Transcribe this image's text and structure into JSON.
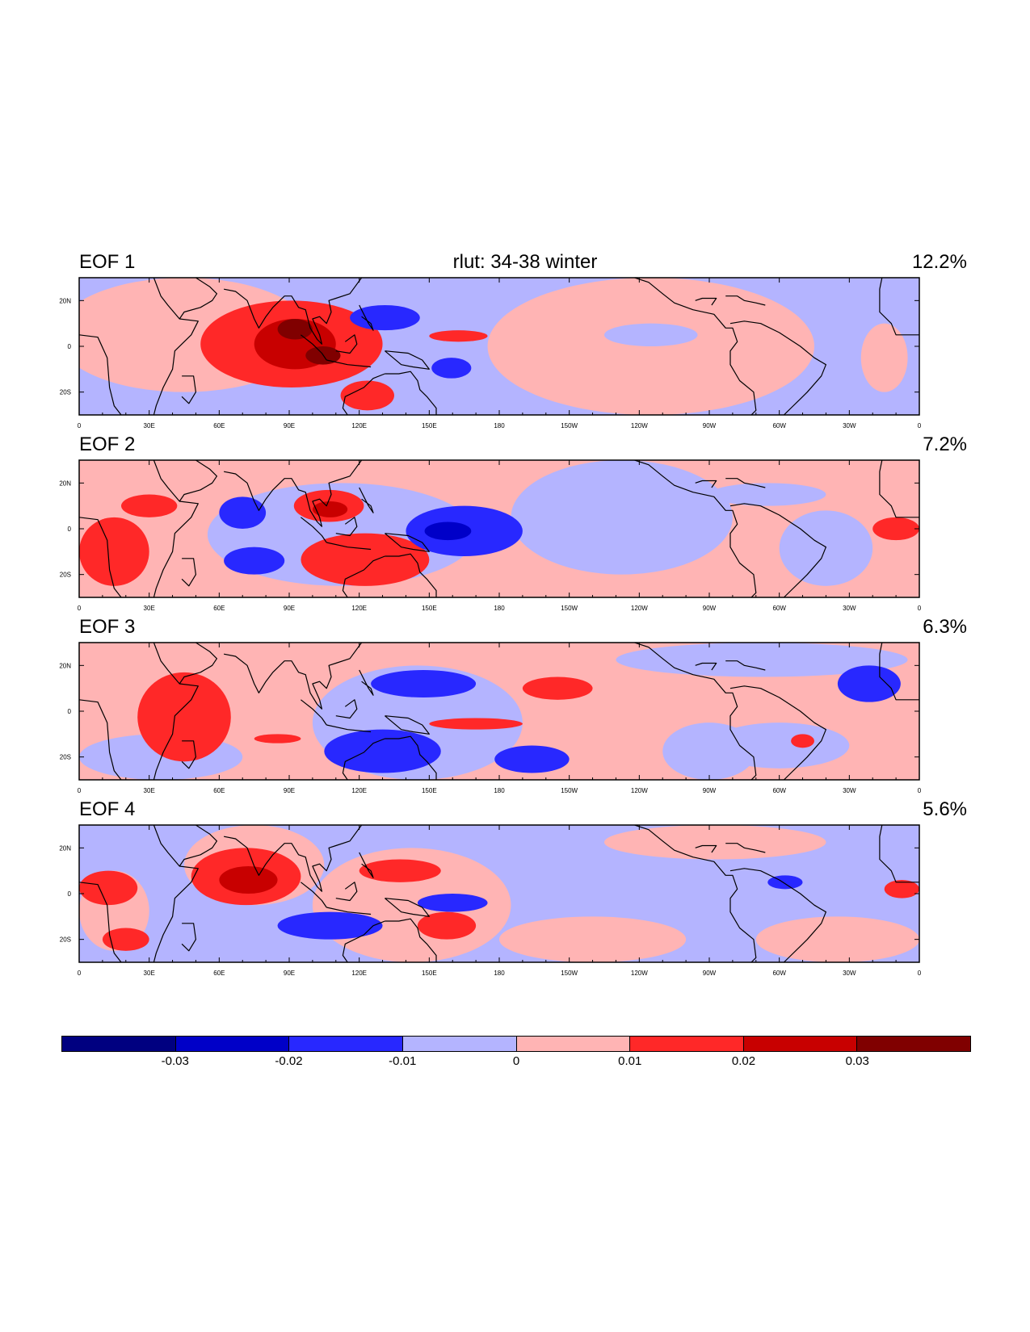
{
  "figure": {
    "main_title": "rlut: 34-38 winter"
  },
  "panels": [
    {
      "title": "EOF 1",
      "variance": "12.2%"
    },
    {
      "title": "EOF 2",
      "variance": "7.2%"
    },
    {
      "title": "EOF 3",
      "variance": "6.3%"
    },
    {
      "title": "EOF 4",
      "variance": "5.6%"
    }
  ],
  "axes": {
    "lat_ticks": [
      "20N",
      "0",
      "20S"
    ],
    "lon_ticks": [
      "0",
      "30E",
      "60E",
      "90E",
      "120E",
      "150E",
      "180",
      "150W",
      "120W",
      "90W",
      "60W",
      "30W",
      "0"
    ]
  },
  "colorbar": {
    "labels": [
      "-0.03",
      "-0.02",
      "-0.01",
      "0",
      "0.01",
      "0.02",
      "0.03"
    ],
    "colors": [
      "#000080",
      "#0000c8",
      "#2828ff",
      "#b4b4ff",
      "#ffb4b4",
      "#ff2828",
      "#c80000",
      "#800000"
    ]
  },
  "chart_data": {
    "type": "heatmap",
    "title": "rlut: 34-38 winter",
    "domain": {
      "lon": [
        0,
        360
      ],
      "lat": [
        -30,
        30
      ]
    },
    "levels": [
      -0.03,
      -0.02,
      -0.01,
      0,
      0.01,
      0.02,
      0.03
    ],
    "panels": [
      {
        "name": "EOF 1",
        "variance_pct": 12.2,
        "background": "neg",
        "features": [
          {
            "lon": [
              -10,
              100
            ],
            "lat": [
              -20,
              30
            ],
            "sign": "pos",
            "level": 1
          },
          {
            "lon": [
              175,
              315
            ],
            "lat": [
              -30,
              30
            ],
            "sign": "pos",
            "level": 1
          },
          {
            "lon": [
              335,
              355
            ],
            "lat": [
              -20,
              10
            ],
            "sign": "pos",
            "level": 1
          },
          {
            "lon": [
              225,
              265
            ],
            "lat": [
              0,
              10
            ],
            "sign": "neg",
            "level": 1
          },
          {
            "lon": [
              52,
              130
            ],
            "lat": [
              -18,
              20
            ],
            "sign": "pos",
            "level": 2
          },
          {
            "lon": [
              75,
              110
            ],
            "lat": [
              -10,
              12
            ],
            "sign": "pos",
            "level": 3
          },
          {
            "lon": [
              85,
              100
            ],
            "lat": [
              3,
              12
            ],
            "sign": "pos",
            "level": 4
          },
          {
            "lon": [
              97,
              112
            ],
            "lat": [
              -8,
              0
            ],
            "sign": "pos",
            "level": 4
          },
          {
            "lon": [
              112,
              135
            ],
            "lat": [
              -28,
              -15
            ],
            "sign": "pos",
            "level": 2
          },
          {
            "lon": [
              150,
              175
            ],
            "lat": [
              2,
              7
            ],
            "sign": "pos",
            "level": 2
          },
          {
            "lon": [
              116,
              146
            ],
            "lat": [
              7,
              18
            ],
            "sign": "neg",
            "level": 2
          },
          {
            "lon": [
              151,
              168
            ],
            "lat": [
              -14,
              -5
            ],
            "sign": "neg",
            "level": 2
          }
        ]
      },
      {
        "name": "EOF 2",
        "variance_pct": 7.2,
        "background": "pos",
        "features": [
          {
            "lon": [
              55,
              170
            ],
            "lat": [
              -25,
              20
            ],
            "sign": "neg",
            "level": 1
          },
          {
            "lon": [
              185,
              280
            ],
            "lat": [
              -20,
              30
            ],
            "sign": "neg",
            "level": 1
          },
          {
            "lon": [
              300,
              340
            ],
            "lat": [
              -25,
              8
            ],
            "sign": "neg",
            "level": 1
          },
          {
            "lon": [
              270,
              320
            ],
            "lat": [
              10,
              20
            ],
            "sign": "neg",
            "level": 1
          },
          {
            "lon": [
              0,
              30
            ],
            "lat": [
              -25,
              5
            ],
            "sign": "pos",
            "level": 2
          },
          {
            "lon": [
              18,
              42
            ],
            "lat": [
              5,
              15
            ],
            "sign": "pos",
            "level": 2
          },
          {
            "lon": [
              92,
              122
            ],
            "lat": [
              3,
              17
            ],
            "sign": "pos",
            "level": 2
          },
          {
            "lon": [
              100,
              115
            ],
            "lat": [
              5,
              12
            ],
            "sign": "pos",
            "level": 3
          },
          {
            "lon": [
              95,
              150
            ],
            "lat": [
              -25,
              -2
            ],
            "sign": "pos",
            "level": 2
          },
          {
            "lon": [
              340,
              360
            ],
            "lat": [
              -5,
              5
            ],
            "sign": "pos",
            "level": 2
          },
          {
            "lon": [
              60,
              80
            ],
            "lat": [
              0,
              14
            ],
            "sign": "neg",
            "level": 2
          },
          {
            "lon": [
              62,
              88
            ],
            "lat": [
              -20,
              -8
            ],
            "sign": "neg",
            "level": 2
          },
          {
            "lon": [
              140,
              190
            ],
            "lat": [
              -12,
              10
            ],
            "sign": "neg",
            "level": 2
          },
          {
            "lon": [
              148,
              168
            ],
            "lat": [
              -5,
              3
            ],
            "sign": "neg",
            "level": 3
          }
        ]
      },
      {
        "name": "EOF 3",
        "variance_pct": 6.3,
        "background": "pos",
        "features": [
          {
            "lon": [
              0,
              70
            ],
            "lat": [
              -30,
              -10
            ],
            "sign": "neg",
            "level": 1
          },
          {
            "lon": [
              100,
              190
            ],
            "lat": [
              -30,
              20
            ],
            "sign": "neg",
            "level": 1
          },
          {
            "lon": [
              230,
              355
            ],
            "lat": [
              15,
              30
            ],
            "sign": "neg",
            "level": 1
          },
          {
            "lon": [
              250,
              290
            ],
            "lat": [
              -30,
              -5
            ],
            "sign": "neg",
            "level": 1
          },
          {
            "lon": [
              270,
              330
            ],
            "lat": [
              -25,
              -5
            ],
            "sign": "neg",
            "level": 1
          },
          {
            "lon": [
              25,
              65
            ],
            "lat": [
              -22,
              17
            ],
            "sign": "pos",
            "level": 2
          },
          {
            "lon": [
              150,
              190
            ],
            "lat": [
              -8,
              -3
            ],
            "sign": "pos",
            "level": 2
          },
          {
            "lon": [
              190,
              220
            ],
            "lat": [
              5,
              15
            ],
            "sign": "pos",
            "level": 2
          },
          {
            "lon": [
              305,
              315
            ],
            "lat": [
              -16,
              -10
            ],
            "sign": "pos",
            "level": 2
          },
          {
            "lon": [
              75,
              95
            ],
            "lat": [
              -14,
              -10
            ],
            "sign": "pos",
            "level": 2
          },
          {
            "lon": [
              125,
              170
            ],
            "lat": [
              6,
              18
            ],
            "sign": "neg",
            "level": 2
          },
          {
            "lon": [
              105,
              155
            ],
            "lat": [
              -27,
              -8
            ],
            "sign": "neg",
            "level": 2
          },
          {
            "lon": [
              178,
              210
            ],
            "lat": [
              -27,
              -15
            ],
            "sign": "neg",
            "level": 2
          },
          {
            "lon": [
              325,
              352
            ],
            "lat": [
              4,
              20
            ],
            "sign": "neg",
            "level": 2
          }
        ]
      },
      {
        "name": "EOF 4",
        "variance_pct": 5.6,
        "background": "neg",
        "features": [
          {
            "lon": [
              0,
              30
            ],
            "lat": [
              -25,
              10
            ],
            "sign": "pos",
            "level": 1
          },
          {
            "lon": [
              45,
              105
            ],
            "lat": [
              -5,
              30
            ],
            "sign": "pos",
            "level": 1
          },
          {
            "lon": [
              100,
              185
            ],
            "lat": [
              -30,
              20
            ],
            "sign": "pos",
            "level": 1
          },
          {
            "lon": [
              225,
              320
            ],
            "lat": [
              15,
              30
            ],
            "sign": "pos",
            "level": 1
          },
          {
            "lon": [
              180,
              260
            ],
            "lat": [
              -30,
              -10
            ],
            "sign": "pos",
            "level": 1
          },
          {
            "lon": [
              290,
              360
            ],
            "lat": [
              -30,
              -10
            ],
            "sign": "pos",
            "level": 1
          },
          {
            "lon": [
              0,
              25
            ],
            "lat": [
              -5,
              10
            ],
            "sign": "pos",
            "level": 2
          },
          {
            "lon": [
              10,
              30
            ],
            "lat": [
              -25,
              -15
            ],
            "sign": "pos",
            "level": 2
          },
          {
            "lon": [
              48,
              95
            ],
            "lat": [
              -5,
              20
            ],
            "sign": "pos",
            "level": 2
          },
          {
            "lon": [
              60,
              85
            ],
            "lat": [
              0,
              12
            ],
            "sign": "pos",
            "level": 3
          },
          {
            "lon": [
              120,
              155
            ],
            "lat": [
              5,
              15
            ],
            "sign": "pos",
            "level": 2
          },
          {
            "lon": [
              145,
              170
            ],
            "lat": [
              -20,
              -8
            ],
            "sign": "pos",
            "level": 2
          },
          {
            "lon": [
              345,
              360
            ],
            "lat": [
              -2,
              6
            ],
            "sign": "pos",
            "level": 2
          },
          {
            "lon": [
              85,
              130
            ],
            "lat": [
              -20,
              -8
            ],
            "sign": "neg",
            "level": 2
          },
          {
            "lon": [
              145,
              175
            ],
            "lat": [
              -8,
              0
            ],
            "sign": "neg",
            "level": 2
          },
          {
            "lon": [
              295,
              310
            ],
            "lat": [
              2,
              8
            ],
            "sign": "neg",
            "level": 2
          }
        ]
      }
    ]
  }
}
